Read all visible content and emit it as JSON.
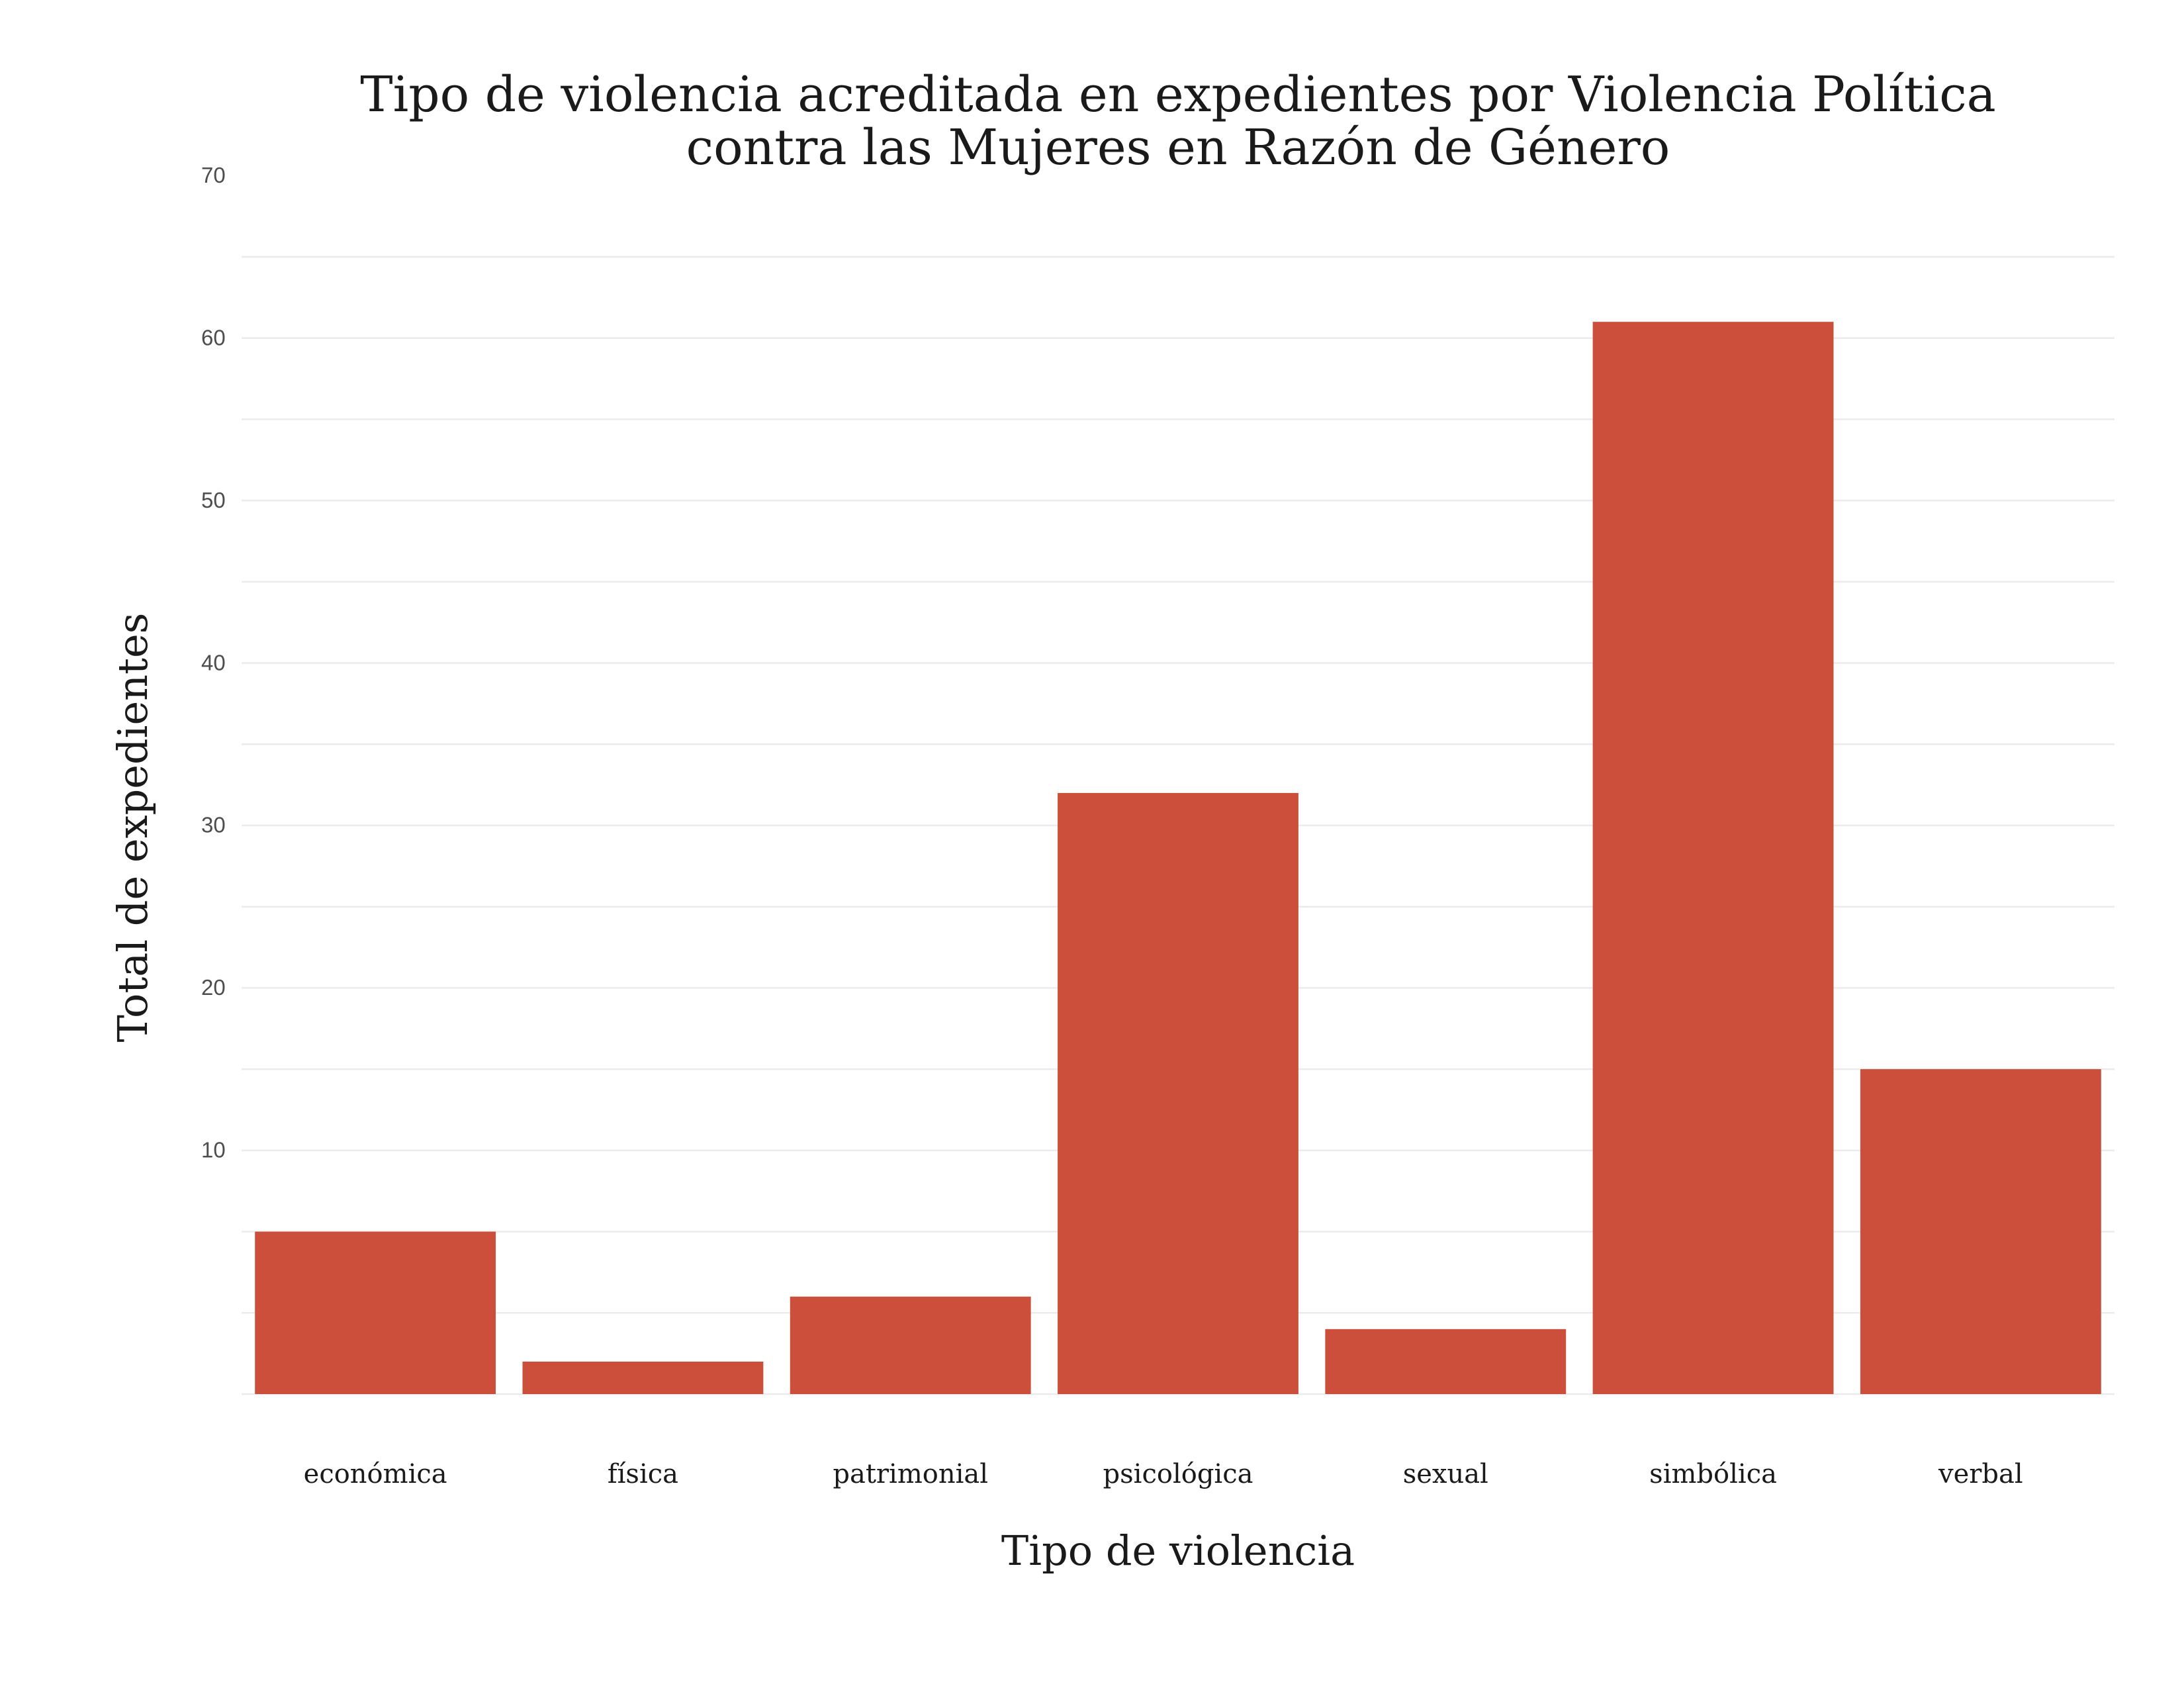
{
  "chart_data": {
    "type": "bar",
    "title_lines": [
      "Tipo de violencia acreditada en expedientes por Violencia Política",
      "contra las Mujeres en Razón de Género"
    ],
    "xlabel": "Tipo de violencia",
    "ylabel": "Total de expedientes",
    "categories": [
      "económica",
      "física",
      "patrimonial",
      "psicológica",
      "sexual",
      "simbólica",
      "verbal"
    ],
    "values": [
      10,
      2,
      6,
      37,
      4,
      66,
      20
    ],
    "ylim": [
      0,
      70
    ],
    "yticks": [
      10,
      20,
      30,
      40,
      50,
      60,
      70
    ],
    "grid": true,
    "legend": "none",
    "bar_color": "#cc4f3b"
  }
}
